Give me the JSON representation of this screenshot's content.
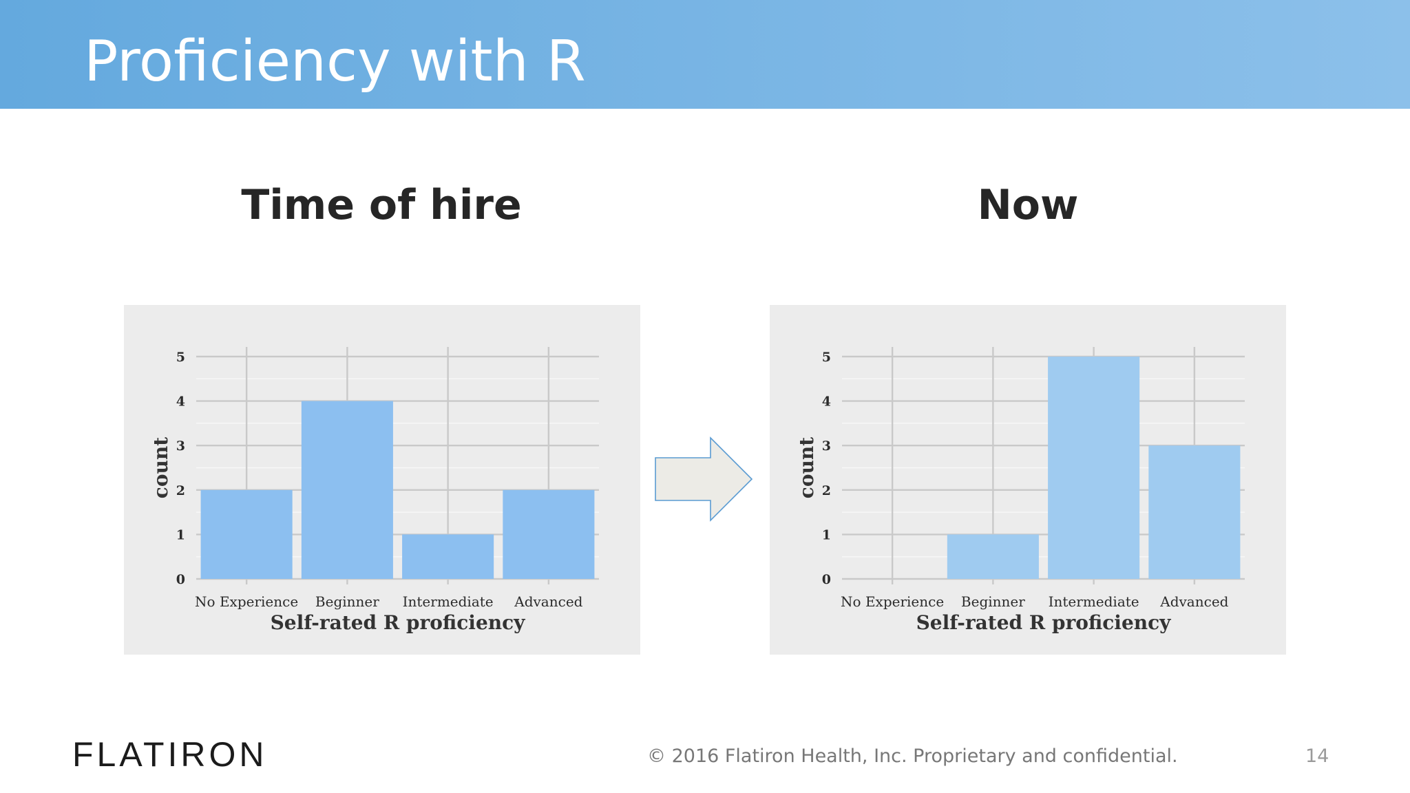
{
  "slide": {
    "title": "Proficiency with R",
    "page_number": "14"
  },
  "panels": {
    "left_heading": "Time of hire",
    "right_heading": "Now"
  },
  "colors": {
    "header_start": "#64a9de",
    "header_end": "#8cc0ea",
    "bar_hire": "#8cbff0",
    "bar_now": "#9fcbf0",
    "card_background": "#ececec",
    "arrow_fill": "#ecebe6",
    "arrow_stroke": "#5a9bd2"
  },
  "icons": {
    "transition": "right-arrow-icon"
  },
  "chart_data": [
    {
      "type": "bar",
      "categories": [
        "No Experience",
        "Beginner",
        "Intermediate",
        "Advanced"
      ],
      "values": [
        2,
        4,
        1,
        2
      ],
      "title": "",
      "xlabel": "Self-rated R proficiency",
      "ylabel": "count",
      "ylim": [
        0,
        5
      ],
      "yticks": [
        "0",
        "1",
        "2",
        "3",
        "4",
        "5"
      ],
      "grid": true,
      "legend": "none"
    },
    {
      "type": "bar",
      "categories": [
        "No Experience",
        "Beginner",
        "Intermediate",
        "Advanced"
      ],
      "values": [
        0,
        1,
        5,
        3
      ],
      "title": "",
      "xlabel": "Self-rated R proficiency",
      "ylabel": "count",
      "ylim": [
        0,
        5
      ],
      "yticks": [
        "0",
        "1",
        "2",
        "3",
        "4",
        "5"
      ],
      "grid": true,
      "legend": "none"
    }
  ],
  "footer": {
    "logo_text": "FLATIRON",
    "copyright": "© 2016 Flatiron Health, Inc. Proprietary and confidential."
  }
}
